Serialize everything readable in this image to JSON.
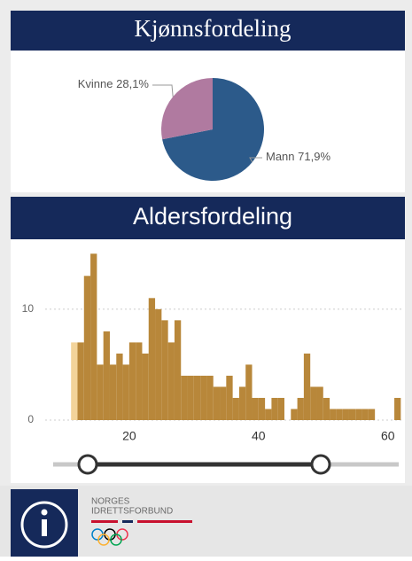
{
  "chart_data": [
    {
      "type": "pie",
      "title": "Kjønnsfordeling",
      "categories": [
        "Kvinne",
        "Mann"
      ],
      "values": [
        28.1,
        71.9
      ],
      "value_labels": [
        "28,1%",
        "71,9%"
      ],
      "colors": [
        "#b07aa0",
        "#2c5a8a"
      ]
    },
    {
      "type": "histogram",
      "title": "Aldersfordeling",
      "bins": [
        11,
        12,
        13,
        14,
        15,
        16,
        17,
        18,
        19,
        20,
        21,
        22,
        23,
        24,
        25,
        26,
        27,
        28,
        29,
        30,
        31,
        32,
        33,
        34,
        35,
        36,
        37,
        38,
        39,
        40,
        41,
        42,
        43,
        44,
        45,
        46,
        47,
        48,
        49,
        50,
        51,
        52,
        53,
        54,
        55,
        56,
        57,
        58,
        59,
        60,
        61,
        62
      ],
      "counts": [
        7,
        7,
        13,
        15,
        5,
        8,
        5,
        6,
        5,
        7,
        7,
        6,
        11,
        10,
        9,
        7,
        9,
        4,
        4,
        4,
        4,
        4,
        3,
        3,
        4,
        2,
        3,
        5,
        2,
        2,
        1,
        2,
        2,
        0,
        1,
        2,
        6,
        3,
        3,
        2,
        1,
        1,
        1,
        1,
        1,
        1,
        1,
        0,
        0,
        0,
        2
      ],
      "color": "#b8873a",
      "first_bar_color": "#f3d49a",
      "xlim": [
        7,
        62.5
      ],
      "xticks": [
        20,
        40,
        60
      ],
      "ylim": [
        0,
        15.5
      ],
      "yticks": [
        0,
        10
      ],
      "grid": true
    }
  ],
  "footer": {
    "logo_lines": [
      "NORGES",
      "IDRETTSFORBUND"
    ]
  }
}
